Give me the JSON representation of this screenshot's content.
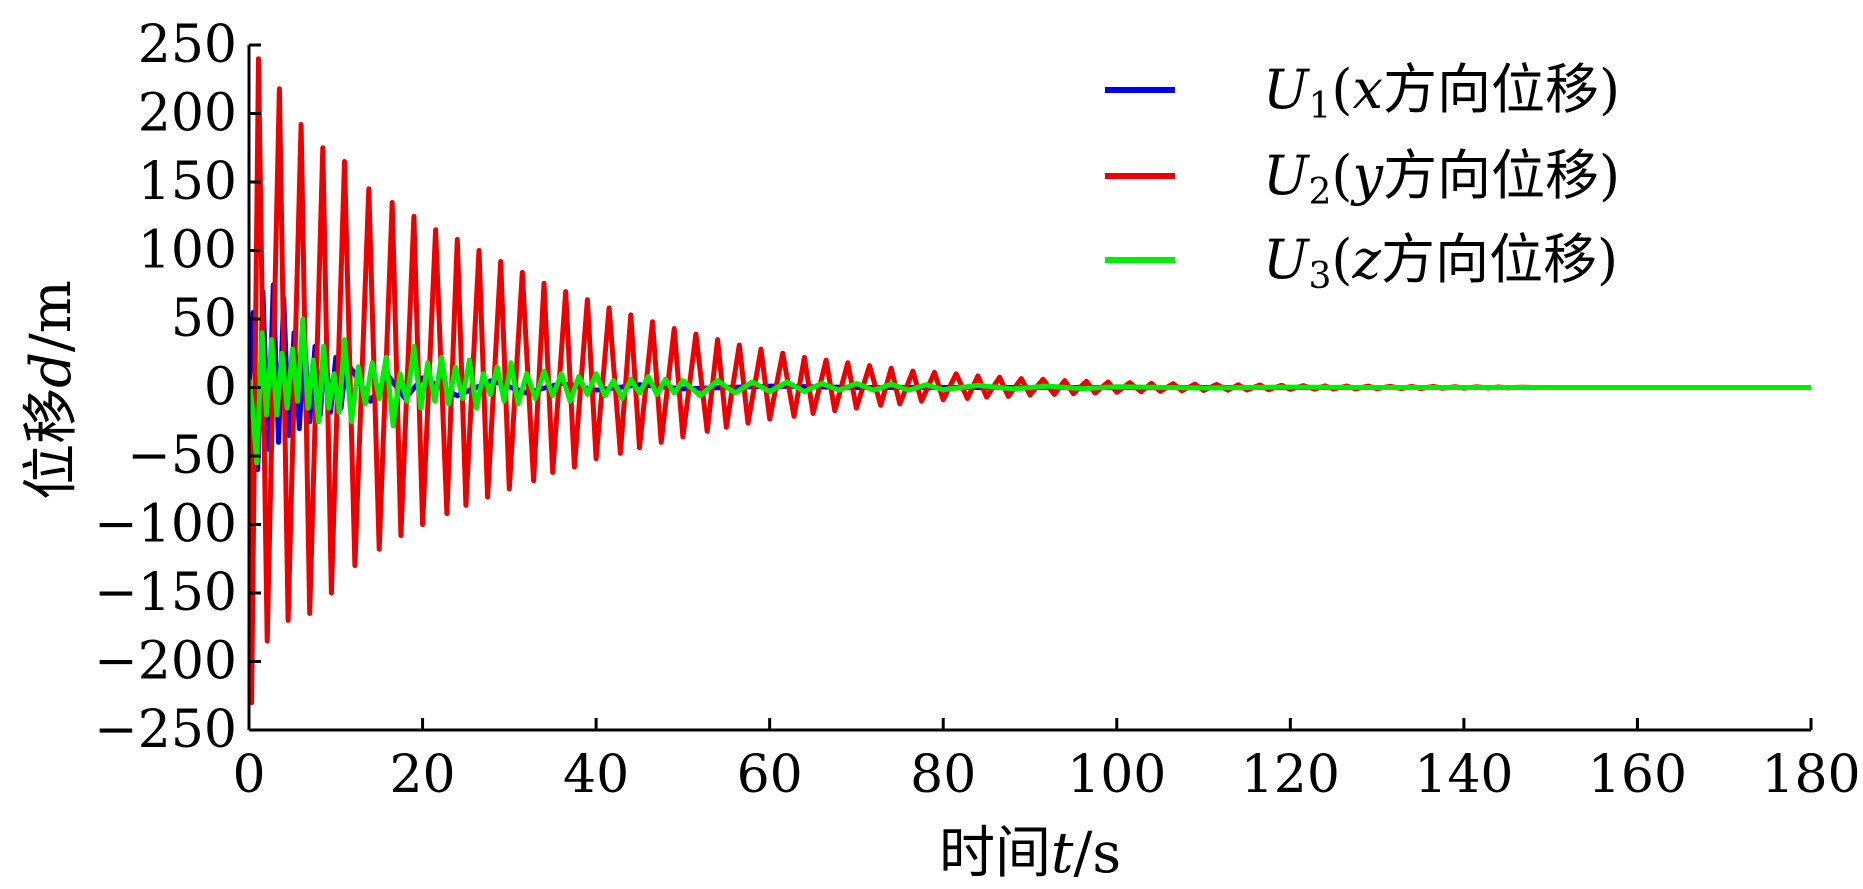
{
  "chart_data": {
    "type": "line",
    "xlabel": "时间t/s",
    "ylabel": "位移d/m",
    "xlim": [
      0,
      180
    ],
    "ylim": [
      -250,
      250
    ],
    "xticks": [
      0,
      20,
      40,
      60,
      80,
      100,
      120,
      140,
      160,
      180
    ],
    "yticks": [
      250,
      200,
      150,
      100,
      50,
      0,
      -50,
      -100,
      -150,
      -200,
      -250
    ],
    "xtick_labels": [
      "0",
      "20",
      "40",
      "60",
      "80",
      "100",
      "120",
      "140",
      "160",
      "180"
    ],
    "ytick_labels": [
      "250",
      "200",
      "150",
      "100",
      "50",
      "0",
      "−50",
      "−100",
      "−150",
      "−200",
      "−250"
    ],
    "grid": false,
    "legend_position": "top-right",
    "series": [
      {
        "name": "U₁(x方向位移)",
        "color": "#0000ee",
        "t": [
          0,
          0.5,
          1.0,
          1.6,
          2.2,
          2.8,
          3.4,
          4.0,
          4.6,
          5.2,
          5.8,
          6.4,
          7.0,
          7.6,
          8.2,
          8.8,
          9.4,
          10.0,
          10.6,
          11.2,
          12,
          14,
          16,
          18,
          20,
          24,
          28,
          32,
          36,
          40,
          45,
          50,
          60,
          70,
          80,
          100,
          150,
          180
        ],
        "values": [
          0,
          55,
          -60,
          70,
          -45,
          75,
          -40,
          65,
          -35,
          40,
          -30,
          35,
          -25,
          30,
          -20,
          28,
          -18,
          22,
          -15,
          18,
          12,
          -10,
          9,
          -8,
          7,
          -6,
          5,
          -4,
          3,
          -2,
          2,
          -1,
          1,
          0,
          0,
          0,
          0,
          0
        ]
      },
      {
        "name": "U₂(y方向位移)",
        "color": "#ee0000",
        "t": [
          0,
          0.3,
          1.1,
          2.1,
          3.5,
          4.5,
          6.0,
          7.0,
          8.5,
          9.5,
          11.0,
          12.2,
          13.8,
          15.0,
          16.5,
          17.5,
          19.0,
          20.0,
          21.5,
          22.8,
          24.0,
          25.0,
          26.5,
          27.5,
          29.0,
          30.0,
          31.5,
          32.8,
          34.0,
          35.0,
          36.5,
          37.5,
          39.0,
          40.0,
          41.5,
          42.8,
          44.0,
          45.0,
          46.5,
          47.5,
          49.0,
          50.0,
          51.5,
          52.8,
          54.0,
          55.0,
          56.5,
          57.5,
          59.0,
          60.0,
          61.5,
          62.8,
          64.0,
          65.0,
          66.5,
          67.5,
          69.0,
          70.0,
          71.5,
          72.8,
          74.0,
          75.0,
          76.5,
          77.5,
          79.0,
          80.0,
          81.5,
          82.8,
          84.0,
          85.0,
          86.5,
          87.5,
          89.0,
          90.0,
          91.5,
          92.8,
          94.0,
          95.0,
          96.5,
          97.5,
          99.0,
          100.0,
          101.5,
          102.8,
          104.0,
          105.0,
          106.5,
          107.5,
          109.0,
          110.0,
          111.5,
          112.8,
          114.0,
          115.0,
          116.5,
          117.5,
          119.0,
          120.0,
          121.5,
          122.8,
          124.0,
          125.0,
          126.5,
          127.5,
          129.0,
          130.0,
          131.5,
          132.8,
          134.0,
          135.0,
          136.5,
          137.5,
          139.0,
          140.0,
          141.5,
          142.8,
          144.0,
          145.0,
          146.5,
          148.0,
          150.0,
          180.0
        ],
        "values": [
          0,
          -230,
          240,
          -185,
          218,
          -170,
          192,
          -165,
          175,
          -150,
          165,
          -130,
          145,
          -118,
          135,
          -108,
          125,
          -100,
          115,
          -92,
          108,
          -86,
          100,
          -80,
          92,
          -74,
          84,
          -68,
          76,
          -62,
          70,
          -58,
          64,
          -52,
          58,
          -48,
          53,
          -44,
          48,
          -40,
          43,
          -36,
          39,
          -32,
          35,
          -29,
          31,
          -26,
          28,
          -23,
          25,
          -21,
          22,
          -19,
          20,
          -17,
          18,
          -15,
          16,
          -13,
          14,
          -12,
          12,
          -10,
          11,
          -9,
          10,
          -8,
          8.5,
          -7,
          7.5,
          -6.5,
          6.5,
          -5.5,
          6,
          -5,
          5,
          -4.5,
          4.5,
          -4,
          4,
          -3.5,
          3.5,
          -3,
          3,
          -2.8,
          2.8,
          -2.4,
          2.4,
          -2.2,
          2.2,
          -2,
          2,
          -1.8,
          1.8,
          -1.6,
          1.6,
          -1.4,
          1.4,
          -1.2,
          1.2,
          -1.1,
          1.1,
          -1,
          1,
          -0.9,
          0.9,
          -0.8,
          0.8,
          -0.7,
          0.7,
          -0.6,
          0.6,
          -0.5,
          0.5,
          -0.4,
          0.4,
          -0.3,
          0.2,
          0,
          0,
          0
        ]
      },
      {
        "name": "U₃(z方向位移)",
        "color": "#00ee00",
        "t": [
          0,
          0.4,
          0.9,
          1.5,
          2.0,
          2.6,
          3.2,
          3.8,
          4.4,
          5.0,
          5.6,
          6.2,
          6.8,
          7.4,
          8.0,
          8.6,
          9.2,
          9.8,
          10.4,
          11.0,
          11.8,
          12.6,
          13.4,
          14.2,
          15.0,
          15.8,
          16.6,
          17.4,
          18.2,
          19.0,
          19.8,
          20.6,
          21.4,
          22.2,
          23.0,
          23.8,
          24.6,
          25.4,
          26.2,
          27.0,
          27.8,
          28.6,
          29.4,
          30.2,
          31.0,
          32.0,
          33.0,
          34.0,
          35.0,
          36.0,
          37.0,
          38.0,
          39.0,
          40.0,
          41.0,
          42.0,
          43.0,
          44.0,
          45.0,
          46.0,
          47.0,
          48.0,
          49.0,
          50.0,
          52,
          54,
          56,
          58,
          60,
          62,
          64,
          66,
          68,
          70,
          72,
          74,
          76,
          78,
          80,
          84,
          88,
          92,
          96,
          100,
          110,
          120,
          130,
          150,
          180
        ],
        "values": [
          5,
          -15,
          -55,
          40,
          -20,
          35,
          -20,
          25,
          -15,
          28,
          -10,
          50,
          -15,
          20,
          -25,
          30,
          -15,
          10,
          -18,
          35,
          -25,
          15,
          -12,
          18,
          -8,
          22,
          -28,
          10,
          -10,
          30,
          -15,
          18,
          -10,
          22,
          -12,
          15,
          -8,
          20,
          -15,
          10,
          -5,
          15,
          -10,
          18,
          -12,
          10,
          -8,
          12,
          -6,
          10,
          -10,
          8,
          -5,
          10,
          -6,
          5,
          -8,
          6,
          -4,
          8,
          -5,
          6,
          -4,
          5,
          -6,
          5,
          -4,
          4,
          -3,
          4,
          -3,
          3,
          -2,
          3,
          -2,
          2.5,
          -2,
          2,
          -1.5,
          1.5,
          -1,
          1,
          -0.8,
          0.6,
          -0.4,
          0.3,
          0,
          0,
          0
        ]
      }
    ]
  },
  "legend": {
    "items": [
      {
        "prefix": "U",
        "sub": "1",
        "open": "(",
        "var": "x",
        "text": "方向位移",
        "close": ")"
      },
      {
        "prefix": "U",
        "sub": "2",
        "open": "(",
        "var": "y",
        "text": "方向位移",
        "close": ")"
      },
      {
        "prefix": "U",
        "sub": "3",
        "open": "(",
        "var": "z",
        "text": "方向位移",
        "close": ")"
      }
    ]
  },
  "axes": {
    "ylabel_text": "位移",
    "ylabel_var": "d",
    "ylabel_unit": "/m",
    "xlabel_text": "时间",
    "xlabel_var": "t",
    "xlabel_unit": "/s"
  }
}
